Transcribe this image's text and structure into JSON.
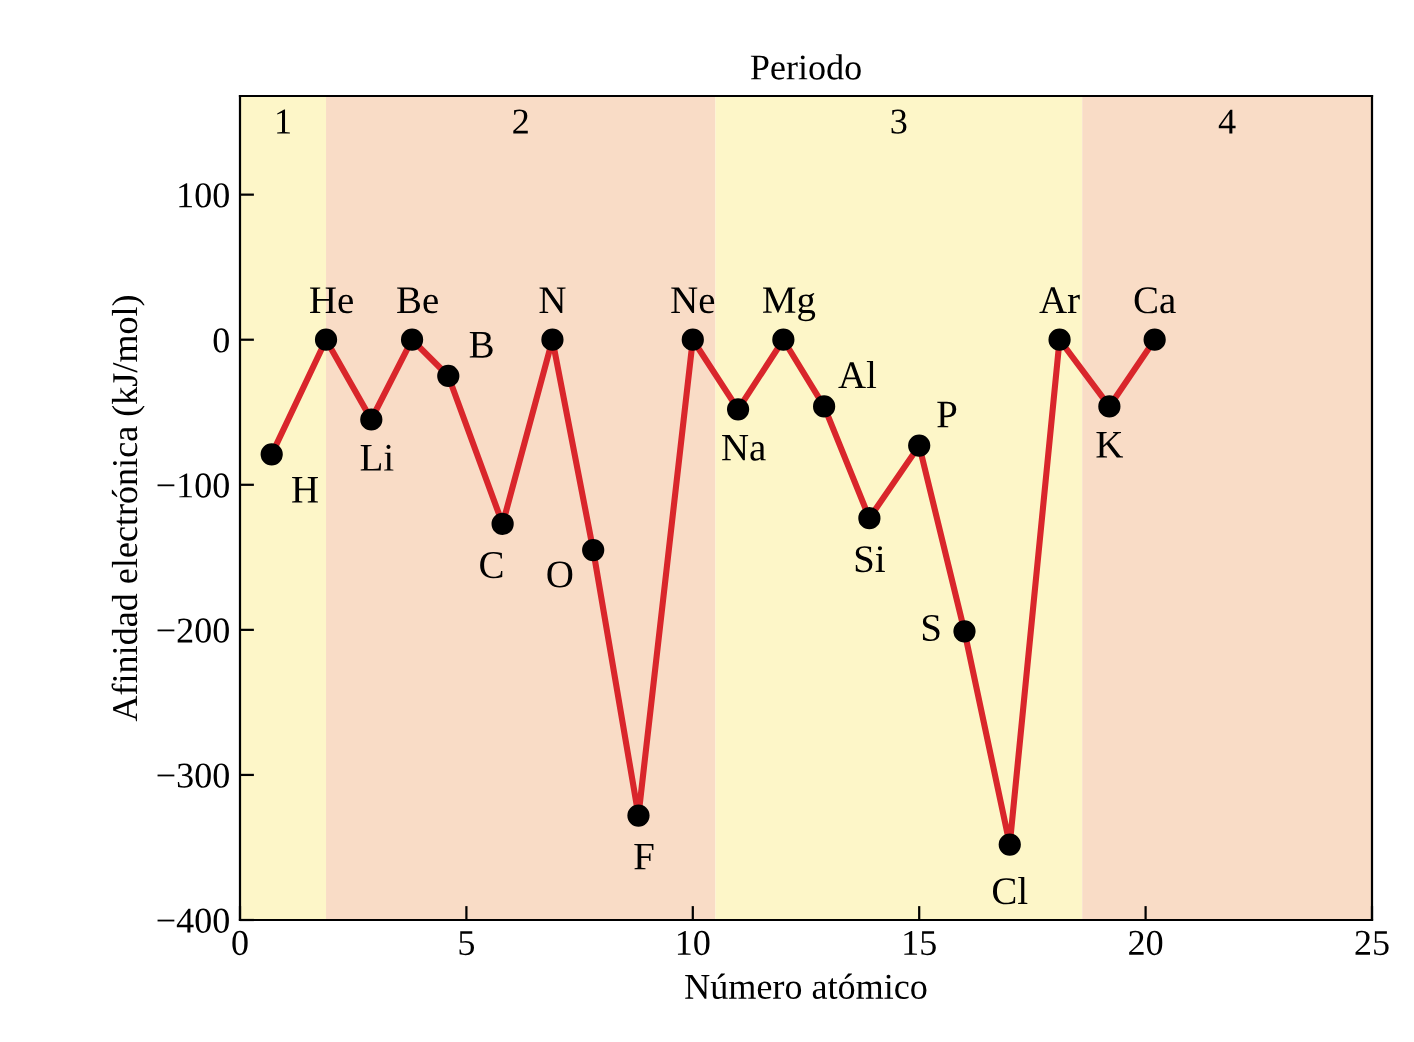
{
  "chart_data": {
    "type": "line",
    "title": "Periodo",
    "xlabel": "Número atómico",
    "ylabel": "Afinidad electrónica (kJ/mol)",
    "x": [
      0.7,
      1.9,
      2.9,
      3.8,
      4.6,
      5.8,
      6.9,
      7.8,
      8.8,
      10.0,
      11.0,
      12.0,
      12.9,
      13.9,
      15.0,
      16.0,
      17.0,
      18.1,
      19.2,
      20.2
    ],
    "series": [
      {
        "color": "#d9262b",
        "values": [
          -79,
          0,
          -55,
          0,
          -25,
          -127,
          0,
          -145,
          -328,
          0,
          -48,
          0,
          -46,
          -123,
          -73,
          -201,
          -348,
          0,
          -46,
          0
        ]
      }
    ],
    "marker": "circle",
    "line_style": "solid",
    "grid": false,
    "legend": false,
    "xlim": [
      0,
      25
    ],
    "xticks": [
      0,
      5,
      10,
      15,
      20,
      25
    ],
    "ylim": [
      -400,
      168
    ],
    "yticks": [
      -400,
      -300,
      -200,
      -100,
      0,
      100
    ],
    "bands": [
      {
        "axis": "x",
        "from": 0,
        "to": 1.9,
        "label": "1",
        "color": "#fdf6c8"
      },
      {
        "axis": "x",
        "from": 1.9,
        "to": 10.5,
        "label": "2",
        "color": "#f9dcc6"
      },
      {
        "axis": "x",
        "from": 10.5,
        "to": 18.6,
        "label": "3",
        "color": "#fdf6c8"
      },
      {
        "axis": "x",
        "from": 18.6,
        "to": 25,
        "label": "4",
        "color": "#f9dcc6"
      }
    ],
    "annotations": [
      {
        "text": "H",
        "x": 0.7,
        "y": -79
      },
      {
        "text": "He",
        "x": 1.9,
        "y": 0
      },
      {
        "text": "Li",
        "x": 2.9,
        "y": -55
      },
      {
        "text": "Be",
        "x": 3.8,
        "y": 0
      },
      {
        "text": "B",
        "x": 4.6,
        "y": -25
      },
      {
        "text": "C",
        "x": 5.8,
        "y": -127
      },
      {
        "text": "N",
        "x": 6.9,
        "y": 0
      },
      {
        "text": "O",
        "x": 7.8,
        "y": -145
      },
      {
        "text": "F",
        "x": 8.8,
        "y": -328
      },
      {
        "text": "Ne",
        "x": 10.0,
        "y": 0
      },
      {
        "text": "Na",
        "x": 11.0,
        "y": -48
      },
      {
        "text": "Mg",
        "x": 12.0,
        "y": 0
      },
      {
        "text": "Al",
        "x": 12.9,
        "y": -46
      },
      {
        "text": "Si",
        "x": 13.9,
        "y": -123
      },
      {
        "text": "P",
        "x": 15.0,
        "y": -73
      },
      {
        "text": "S",
        "x": 16.0,
        "y": -201
      },
      {
        "text": "Cl",
        "x": 17.0,
        "y": -348
      },
      {
        "text": "Ar",
        "x": 18.1,
        "y": 0
      },
      {
        "text": "K",
        "x": 19.2,
        "y": -46
      },
      {
        "text": "Ca",
        "x": 20.2,
        "y": 0
      }
    ]
  }
}
